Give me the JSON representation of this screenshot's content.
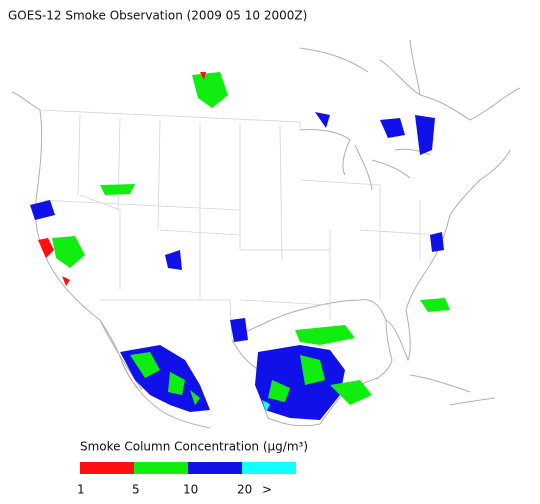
{
  "title": "GOES-12 Smoke Observation (2009 05 10  2000Z)",
  "legend": {
    "title": "Smoke Column Concentration (μg/m³)",
    "labels": [
      "1",
      "5",
      "10",
      "20",
      ">"
    ],
    "colors": [
      "#ff1010",
      "#10ee10",
      "#1010e8",
      "#10ffff"
    ]
  }
}
